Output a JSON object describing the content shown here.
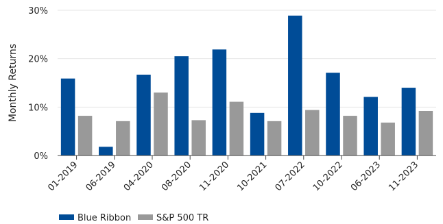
{
  "chart_data": {
    "type": "bar",
    "title": "",
    "xlabel": "",
    "ylabel": "Monthly Returns",
    "ylim": [
      0,
      30
    ],
    "yticks": [
      "0%",
      "10%",
      "20%",
      "30%"
    ],
    "grid": true,
    "legend": "bottom-left",
    "categories": [
      "01-2019",
      "06-2019",
      "04-2020",
      "08-2020",
      "11-2020",
      "10-2021",
      "07-2022",
      "10-2022",
      "06-2023",
      "11-2023"
    ],
    "series": [
      {
        "name": "Blue Ribbon",
        "color": "#004c97",
        "values": [
          15.9,
          1.8,
          16.7,
          20.5,
          21.9,
          8.8,
          28.9,
          17.1,
          12.1,
          14.0
        ]
      },
      {
        "name": "S&P 500 TR",
        "color": "#999999",
        "values": [
          8.2,
          7.1,
          13.0,
          7.3,
          11.1,
          7.1,
          9.4,
          8.2,
          6.8,
          9.2
        ]
      }
    ]
  }
}
